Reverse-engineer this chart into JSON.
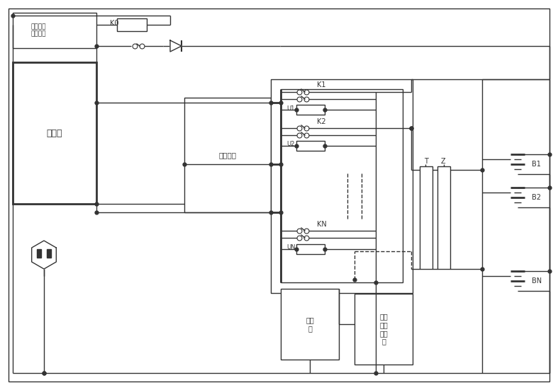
{
  "bg": "#ffffff",
  "lc": "#333333",
  "lw": 1.0,
  "tlw": 2.0,
  "labels": {
    "ac_input": "交流输入\n检测电路",
    "k0": "K0",
    "charger": "充电机",
    "balance": "均衡模块",
    "k1": "K1",
    "k2": "K2",
    "kn": "KN",
    "u1": "U1",
    "u2": "U2",
    "un": "UN",
    "t": "T",
    "z": "Z",
    "b1": "B1",
    "b2": "B2",
    "bn": "BN",
    "controller": "控制\n器",
    "display": "数据\n显示\n及报\n表"
  }
}
